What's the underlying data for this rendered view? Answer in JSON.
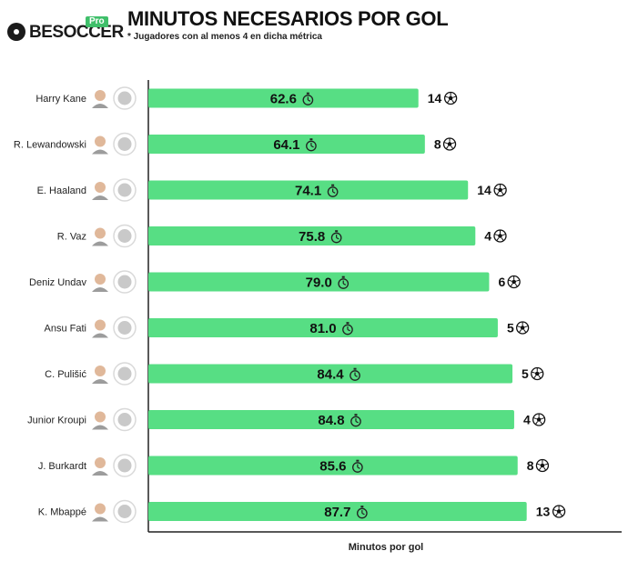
{
  "brand": {
    "name": "BESOCCER",
    "badge": "Pro"
  },
  "title": "MINUTOS NECESARIOS POR GOL",
  "subtitle": "* Jugadores con al menos 4 en dicha métrica",
  "colors": {
    "bar": "#57de84",
    "crest_ring": "#d9d9d9"
  },
  "chart_data": {
    "type": "bar",
    "orientation": "horizontal",
    "categories": [
      "Harry Kane",
      "R. Lewandowski",
      "E. Haaland",
      "R. Vaz",
      "Deniz Undav",
      "Ansu Fati",
      "C. Pulišić",
      "Junior Kroupi",
      "J. Burkardt",
      "K. Mbappé"
    ],
    "values": [
      62.6,
      64.1,
      74.1,
      75.8,
      79.0,
      81.0,
      84.4,
      84.8,
      85.6,
      87.7
    ],
    "value_labels": [
      "62.6",
      "64.1",
      "74.1",
      "75.8",
      "79.0",
      "81.0",
      "84.4",
      "84.8",
      "85.6",
      "87.7"
    ],
    "goals": [
      "14",
      "8",
      "14",
      "4",
      "6",
      "5",
      "5",
      "4",
      "8",
      "13"
    ],
    "xlabel": "Minutos por gol",
    "ylabel": "",
    "xlim": [
      0,
      100
    ],
    "grid": false,
    "legend": "none",
    "value_icon": "stopwatch-icon",
    "goal_icon": "football-icon"
  }
}
